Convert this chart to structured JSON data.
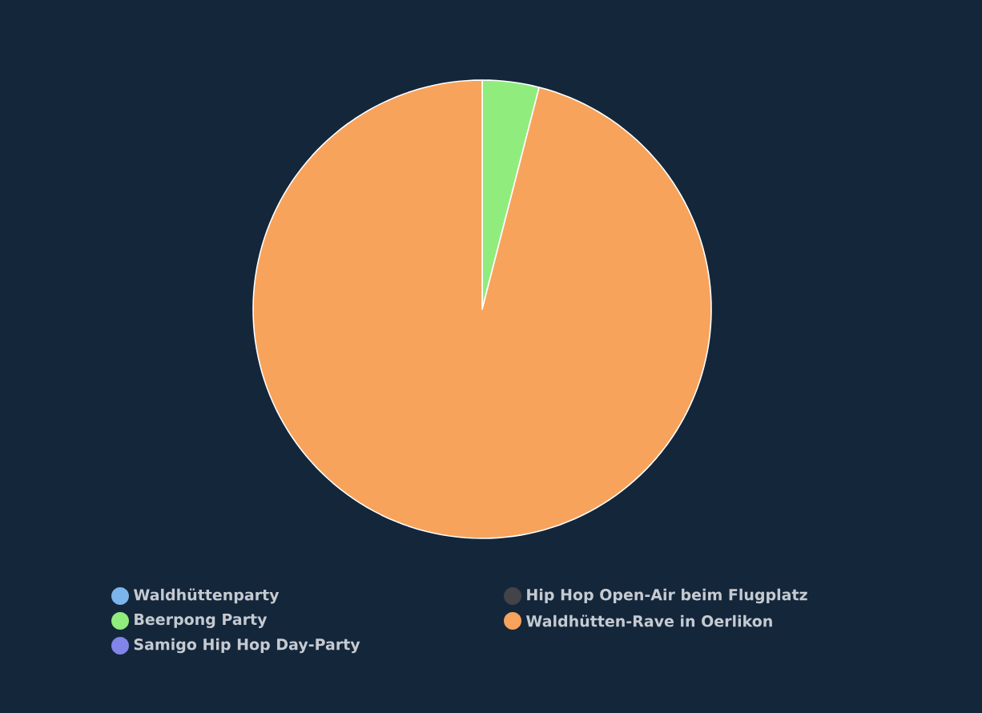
{
  "chart_data": {
    "type": "pie",
    "categories": [
      "Waldhüttenparty",
      "Hip Hop Open-Air beim Flugplatz",
      "Beerpong Party",
      "Waldhütten-Rave in Oerlikon",
      "Samigo Hip Hop Day-Party"
    ],
    "values": [
      0,
      0,
      4,
      96,
      0
    ],
    "colors": [
      "#7cb5ec",
      "#434348",
      "#90ed7d",
      "#f7a35c",
      "#8085e9"
    ],
    "legend": "bottom"
  }
}
